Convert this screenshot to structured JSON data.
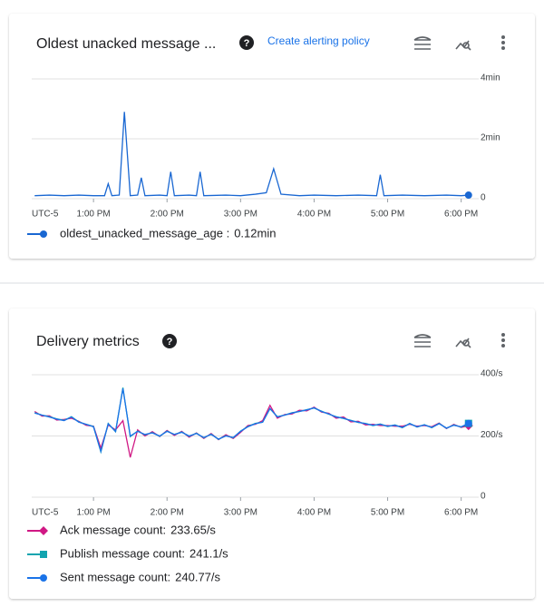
{
  "chart_data": [
    {
      "type": "line",
      "title": "Oldest unacked message ...",
      "alert_link": "Create alerting policy",
      "timezone": "UTC-5",
      "xlim": [
        12.16,
        18.14
      ],
      "xticks": [
        {
          "value": 13,
          "label": "1:00 PM"
        },
        {
          "value": 14,
          "label": "2:00 PM"
        },
        {
          "value": 15,
          "label": "3:00 PM"
        },
        {
          "value": 16,
          "label": "4:00 PM"
        },
        {
          "value": 17,
          "label": "5:00 PM"
        },
        {
          "value": 18,
          "label": "6:00 PM"
        }
      ],
      "ylim": [
        0,
        4
      ],
      "yticks": [
        0,
        {
          "value": 2,
          "label": "2min"
        },
        {
          "value": 4,
          "label": "4min"
        }
      ],
      "grid": true,
      "x": [
        12.2,
        12.4,
        12.6,
        12.8,
        13.0,
        13.15,
        13.2,
        13.25,
        13.35,
        13.42,
        13.5,
        13.6,
        13.65,
        13.7,
        13.9,
        14.0,
        14.05,
        14.1,
        14.3,
        14.4,
        14.45,
        14.5,
        14.8,
        15.0,
        15.2,
        15.35,
        15.45,
        15.55,
        15.8,
        16.0,
        16.3,
        16.6,
        16.85,
        16.9,
        16.95,
        17.2,
        17.5,
        17.8,
        18.0,
        18.1
      ],
      "series": [
        {
          "name": "oldest_unacked_message_age :",
          "last_label": "0.12min",
          "color": "#1967d2",
          "marker": "circle",
          "values": [
            0.1,
            0.12,
            0.1,
            0.12,
            0.1,
            0.1,
            0.5,
            0.1,
            0.12,
            2.9,
            0.1,
            0.12,
            0.7,
            0.1,
            0.12,
            0.1,
            0.9,
            0.1,
            0.12,
            0.1,
            0.9,
            0.1,
            0.12,
            0.1,
            0.15,
            0.2,
            1.0,
            0.15,
            0.1,
            0.12,
            0.1,
            0.12,
            0.1,
            0.8,
            0.1,
            0.12,
            0.1,
            0.12,
            0.1,
            0.12
          ]
        }
      ]
    },
    {
      "type": "line",
      "title": "Delivery metrics",
      "timezone": "UTC-5",
      "xlim": [
        12.16,
        18.14
      ],
      "xticks": [
        {
          "value": 13,
          "label": "1:00 PM"
        },
        {
          "value": 14,
          "label": "2:00 PM"
        },
        {
          "value": 15,
          "label": "3:00 PM"
        },
        {
          "value": 16,
          "label": "4:00 PM"
        },
        {
          "value": 17,
          "label": "5:00 PM"
        },
        {
          "value": 18,
          "label": "6:00 PM"
        }
      ],
      "ylim": [
        0,
        400
      ],
      "yticks": [
        0,
        {
          "value": 200,
          "label": "200/s"
        },
        {
          "value": 400,
          "label": "400/s"
        }
      ],
      "grid": true,
      "x": [
        12.2,
        12.3,
        12.4,
        12.5,
        12.6,
        12.7,
        12.8,
        12.9,
        13.0,
        13.1,
        13.2,
        13.3,
        13.4,
        13.5,
        13.6,
        13.7,
        13.8,
        13.9,
        14.0,
        14.1,
        14.2,
        14.3,
        14.4,
        14.5,
        14.6,
        14.7,
        14.8,
        14.9,
        15.0,
        15.1,
        15.2,
        15.3,
        15.4,
        15.5,
        15.6,
        15.7,
        15.8,
        15.9,
        16.0,
        16.1,
        16.2,
        16.3,
        16.4,
        16.5,
        16.6,
        16.7,
        16.8,
        16.9,
        17.0,
        17.1,
        17.2,
        17.3,
        17.4,
        17.5,
        17.6,
        17.7,
        17.8,
        17.9,
        18.0,
        18.1
      ],
      "series": [
        {
          "name": "Ack message count:",
          "last_label": "233.65/s",
          "color": "#d01884",
          "marker": "diamond",
          "values": [
            280,
            265,
            266,
            252,
            254,
            258,
            248,
            235,
            232,
            160,
            236,
            220,
            250,
            130,
            220,
            200,
            214,
            198,
            218,
            202,
            215,
            196,
            210,
            192,
            208,
            188,
            204,
            192,
            212,
            234,
            238,
            250,
            300,
            258,
            270,
            272,
            284,
            282,
            294,
            278,
            274,
            258,
            262,
            246,
            248,
            236,
            238,
            234,
            234,
            232,
            232,
            238,
            232,
            234,
            230,
            242,
            224,
            238,
            228,
            233.65
          ]
        },
        {
          "name": "Publish message count:",
          "last_label": "241.1/s",
          "color": "#12a4af",
          "marker": "square",
          "values": [
            276,
            268,
            263,
            256,
            251,
            263,
            246,
            238,
            231,
            148,
            241,
            214,
            358,
            198,
            216,
            204,
            211,
            199,
            216,
            205,
            213,
            199,
            209,
            194,
            206,
            189,
            201,
            194,
            216,
            231,
            241,
            245,
            289,
            263,
            268,
            276,
            280,
            286,
            291,
            281,
            271,
            263,
            257,
            251,
            244,
            241,
            234,
            239,
            231,
            236,
            227,
            241,
            229,
            237,
            227,
            241,
            225,
            236,
            229,
            241.1
          ]
        },
        {
          "name": "Sent message count:",
          "last_label": "240.77/s",
          "color": "#1a73e8",
          "marker": "circle",
          "values": [
            275,
            268,
            262,
            255,
            250,
            262,
            245,
            238,
            230,
            150,
            240,
            215,
            355,
            200,
            215,
            205,
            210,
            200,
            215,
            205,
            212,
            200,
            208,
            195,
            205,
            190,
            200,
            195,
            215,
            230,
            240,
            245,
            290,
            262,
            268,
            275,
            280,
            285,
            292,
            280,
            272,
            262,
            258,
            250,
            245,
            240,
            235,
            238,
            232,
            235,
            228,
            240,
            230,
            236,
            228,
            240,
            226,
            235,
            230,
            240.77
          ]
        }
      ]
    }
  ]
}
